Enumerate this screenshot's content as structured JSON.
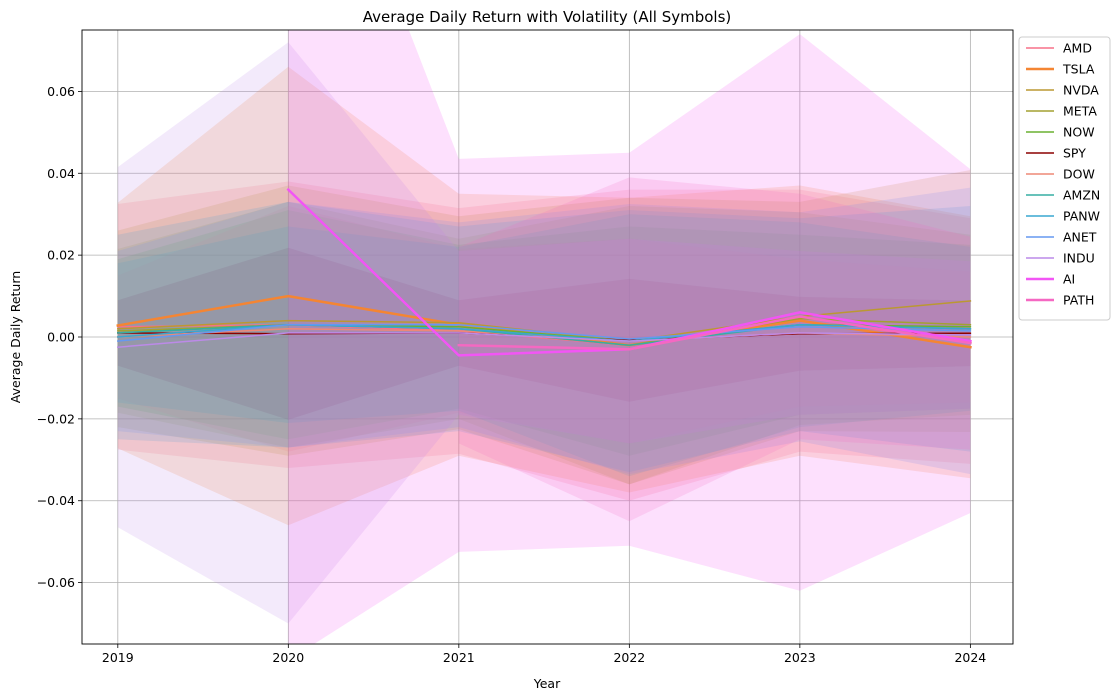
{
  "chart_data": {
    "type": "line",
    "title": "Average Daily Return with Volatility (All Symbols)",
    "xlabel": "Year",
    "ylabel": "Average Daily Return",
    "x": [
      2019,
      2020,
      2021,
      2022,
      2023,
      2024
    ],
    "x_tick_labels": [
      "2019",
      "2020",
      "2021",
      "2022",
      "2023",
      "2024"
    ],
    "ylim": [
      -0.075,
      0.075
    ],
    "y_ticks": [
      -0.06,
      -0.04,
      -0.02,
      0.0,
      0.02,
      0.04,
      0.06
    ],
    "y_tick_labels": [
      "−0.06",
      "−0.04",
      "−0.02",
      "0.00",
      "0.02",
      "0.04",
      "0.06"
    ],
    "grid": true,
    "legend_position": "outside-top-right",
    "band": "mean ± standard deviation of daily returns",
    "series": [
      {
        "name": "AMD",
        "color": "#f77189",
        "width": 1.5,
        "values": [
          0.0025,
          0.003,
          0.0015,
          -0.002,
          0.004,
          -0.001
        ],
        "std": [
          0.03,
          0.035,
          0.03,
          0.038,
          0.032,
          0.03
        ]
      },
      {
        "name": "TSLA",
        "color": "#f48533",
        "width": 2.5,
        "values": [
          0.0028,
          0.01,
          0.003,
          -0.002,
          0.004,
          -0.0025
        ],
        "std": [
          0.03,
          0.056,
          0.032,
          0.036,
          0.033,
          0.032
        ]
      },
      {
        "name": "NVDA",
        "color": "#bb9832",
        "width": 1.5,
        "values": [
          0.002,
          0.004,
          0.0035,
          -0.001,
          0.005,
          0.0088
        ],
        "std": [
          0.024,
          0.033,
          0.026,
          0.035,
          0.028,
          0.032
        ]
      },
      {
        "name": "META",
        "color": "#a3a131",
        "width": 1.5,
        "values": [
          0.0015,
          0.003,
          0.002,
          -0.002,
          0.0045,
          0.003
        ],
        "std": [
          0.02,
          0.03,
          0.022,
          0.034,
          0.026,
          0.022
        ]
      },
      {
        "name": "NOW",
        "color": "#6ab131",
        "width": 1.5,
        "values": [
          0.001,
          0.003,
          0.0025,
          -0.001,
          0.003,
          0.0025
        ],
        "std": [
          0.018,
          0.028,
          0.02,
          0.028,
          0.022,
          0.02
        ]
      },
      {
        "name": "SPY",
        "color": "#8b0000",
        "width": 1.5,
        "values": [
          0.001,
          0.0008,
          0.001,
          -0.0008,
          0.0008,
          0.0009
        ],
        "std": [
          0.008,
          0.021,
          0.008,
          0.015,
          0.009,
          0.008
        ]
      },
      {
        "name": "DOW",
        "color": "#ee8877",
        "width": 1.5,
        "values": [
          0.0,
          0.002,
          0.0015,
          -0.001,
          0.001,
          0.0
        ],
        "std": [
          0.015,
          0.03,
          0.02,
          0.025,
          0.018,
          0.016
        ]
      },
      {
        "name": "AMZN",
        "color": "#36ada4",
        "width": 1.5,
        "values": [
          0.001,
          0.003,
          0.002,
          -0.002,
          0.003,
          0.002
        ],
        "std": [
          0.017,
          0.024,
          0.02,
          0.032,
          0.025,
          0.02
        ]
      },
      {
        "name": "PANW",
        "color": "#38a7d0",
        "width": 1.5,
        "values": [
          0.0,
          0.003,
          0.002,
          -0.001,
          0.003,
          0.002
        ],
        "std": [
          0.025,
          0.03,
          0.025,
          0.032,
          0.026,
          0.03
        ]
      },
      {
        "name": "ANET",
        "color": "#6598f0",
        "width": 1.5,
        "values": [
          -0.001,
          0.003,
          0.003,
          -0.0005,
          0.0025,
          0.0015
        ],
        "std": [
          0.022,
          0.03,
          0.025,
          0.033,
          0.028,
          0.035
        ]
      },
      {
        "name": "INDU",
        "color": "#bc8ae8",
        "width": 1.5,
        "values": [
          -0.0025,
          0.001,
          0.001,
          -0.001,
          0.001,
          0.0005
        ],
        "std": [
          0.044,
          0.071,
          0.02,
          0.025,
          0.02,
          0.018
        ]
      },
      {
        "name": "AI",
        "color": "#f255f5",
        "width": 2.5,
        "values": [
          null,
          0.036,
          -0.0045,
          -0.003,
          0.006,
          -0.001
        ],
        "std": [
          null,
          0.115,
          0.048,
          0.048,
          0.068,
          0.042
        ]
      },
      {
        "name": "PATH",
        "color": "#f568c2",
        "width": 2.5,
        "values": [
          null,
          null,
          -0.002,
          -0.003,
          0.005,
          -0.0015
        ],
        "std": [
          null,
          null,
          0.024,
          0.042,
          0.03,
          0.026
        ]
      }
    ]
  }
}
